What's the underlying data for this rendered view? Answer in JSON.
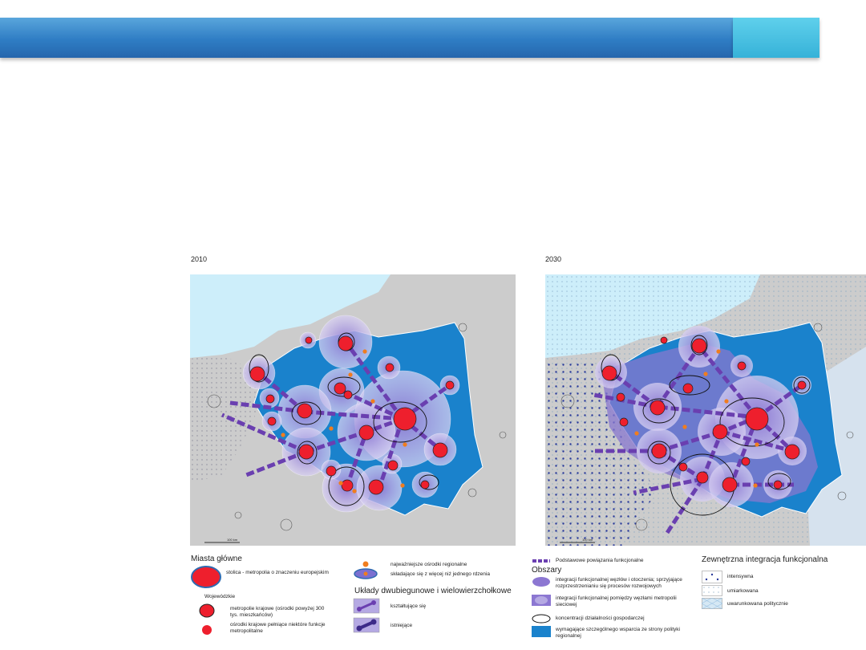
{
  "panels": [
    {
      "year": "2010",
      "scalebar": "100 km"
    },
    {
      "year": "2030",
      "scalebar": "100 km"
    }
  ],
  "legend": {
    "main_cities": {
      "heading": "Miasta główne",
      "capital": "stolica - metropolia o znaczeniu europejskim",
      "subheading": "Wojewódzkie",
      "national": "metropolie krajowe (ośrodki powyżej 300 tys. mieszkańców)",
      "partial": "ośrodki krajowe pełniące niektóre funkcje metropolitalne"
    },
    "regional": {
      "main": "najważniejsze ośrodki regionalne",
      "multi": "składające się z więcej niż jednego rdzenia"
    },
    "bipolar": {
      "heading": "Układy dwubiegunowe i wielowierzchołkowe",
      "forming": "kształtujące się",
      "existing": "istniejące"
    },
    "links": "Podstawowe powiązania funkcjonalne",
    "areas": {
      "heading": "Obszary",
      "integration": "integracji funkcjonalnej węzłów i otoczenia; sprzyjające rozprzestrzenianiu się procesów rozwojowych",
      "network": "integracji funkcjonalnej pomiędzy węzłami metropolii sieciowej",
      "concentration": "koncentracji działalności gospodarczej",
      "support": "wymagające szczególnego wsparcia ze strony polityki regionalnej"
    },
    "external": {
      "heading": "Zewnętrzna integracja funkcjonalna",
      "intense": "intensywna",
      "moderate": "umiarkowana",
      "political": "uwarunkowana politycznie"
    }
  },
  "colors": {
    "land": "#cccccc",
    "sea": "#cdeefa",
    "poland": "#1a82cc",
    "city": "#ee1f2d",
    "regional": "#f07d1e",
    "halo": "#9a86d6",
    "link": "#6a3fb0"
  }
}
